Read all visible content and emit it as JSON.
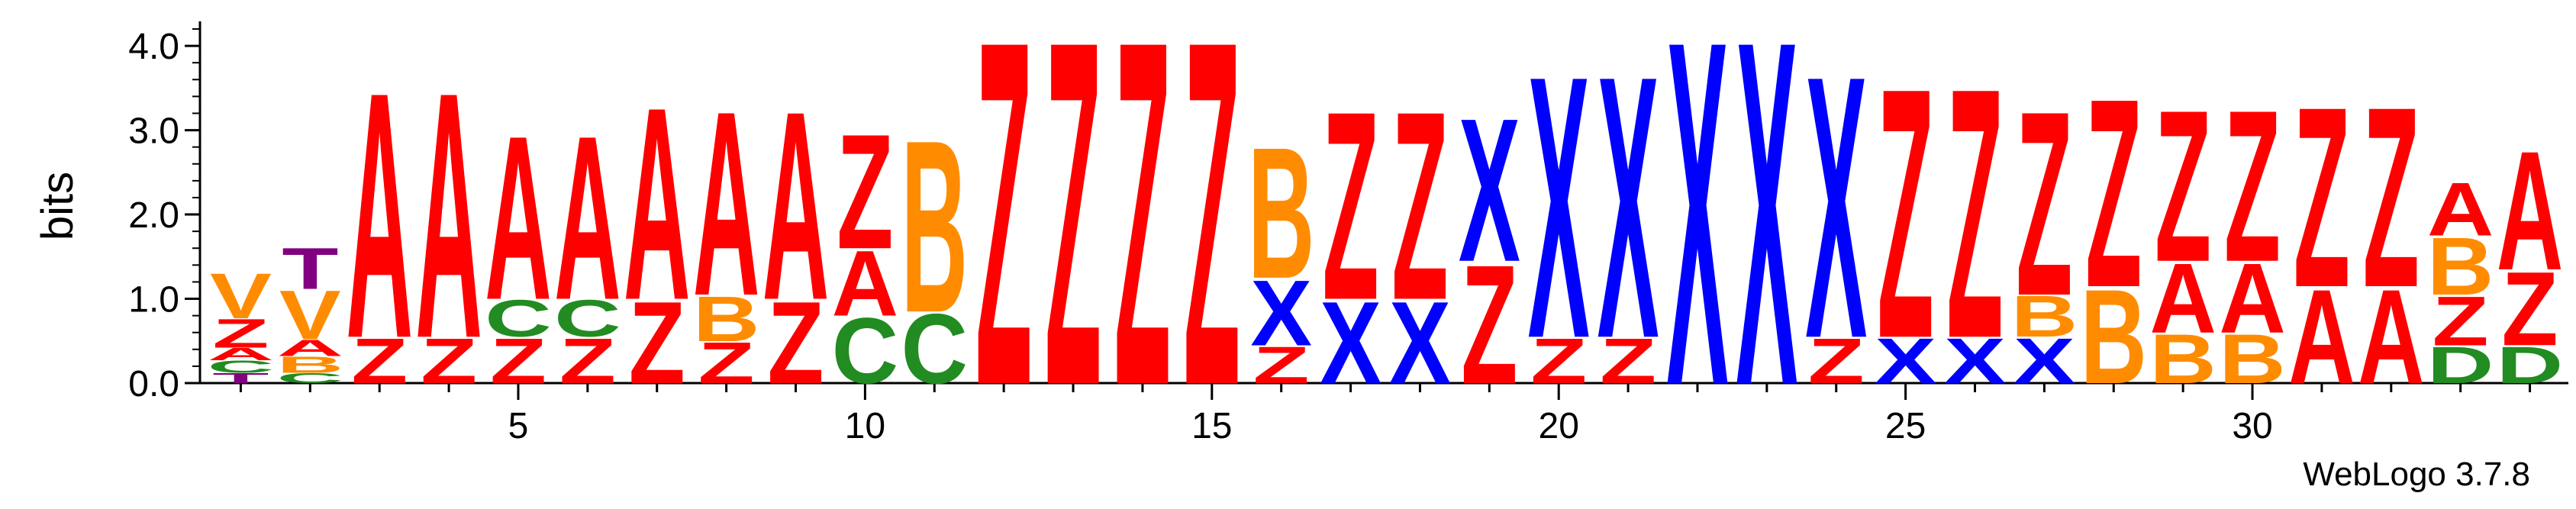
{
  "chart_data": {
    "type": "sequence-logo",
    "title": "",
    "xlabel": "",
    "ylabel": "bits",
    "ylim": [
      0,
      4.2
    ],
    "yticks": [
      "0.0",
      "1.0",
      "2.0",
      "3.0",
      "4.0"
    ],
    "xticks": [
      "5",
      "10",
      "15",
      "20",
      "25",
      "30"
    ],
    "colors": {
      "A": "#ff0000",
      "Z": "#ff0000",
      "B": "#ff8c00",
      "V": "#ff8c00",
      "C": "#228b22",
      "D": "#228b22",
      "X": "#0000ff",
      "T": "#800080"
    },
    "positions": [
      {
        "pos": 1,
        "stack": [
          [
            "T",
            0.12
          ],
          [
            "C",
            0.15
          ],
          [
            "A",
            0.15
          ],
          [
            "Z",
            0.35
          ],
          [
            "V",
            0.55
          ]
        ]
      },
      {
        "pos": 2,
        "stack": [
          [
            "C",
            0.12
          ],
          [
            "B",
            0.2
          ],
          [
            "A",
            0.2
          ],
          [
            "V",
            0.6
          ],
          [
            "T",
            0.5
          ]
        ]
      },
      {
        "pos": 3,
        "stack": [
          [
            "Z",
            0.55
          ],
          [
            "A",
            3.0
          ]
        ]
      },
      {
        "pos": 4,
        "stack": [
          [
            "Z",
            0.55
          ],
          [
            "A",
            3.0
          ]
        ]
      },
      {
        "pos": 5,
        "stack": [
          [
            "Z",
            0.55
          ],
          [
            "C",
            0.45
          ],
          [
            "A",
            2.0
          ]
        ]
      },
      {
        "pos": 6,
        "stack": [
          [
            "Z",
            0.55
          ],
          [
            "C",
            0.45
          ],
          [
            "A",
            2.0
          ]
        ]
      },
      {
        "pos": 7,
        "stack": [
          [
            "Z",
            1.0
          ],
          [
            "A",
            2.35
          ]
        ]
      },
      {
        "pos": 8,
        "stack": [
          [
            "Z",
            0.5
          ],
          [
            "B",
            0.55
          ],
          [
            "A",
            2.25
          ]
        ]
      },
      {
        "pos": 9,
        "stack": [
          [
            "Z",
            1.0
          ],
          [
            "A",
            2.3
          ]
        ]
      },
      {
        "pos": 10,
        "stack": [
          [
            "C",
            0.8
          ],
          [
            "A",
            0.8
          ],
          [
            "Z",
            1.4
          ]
        ]
      },
      {
        "pos": 11,
        "stack": [
          [
            "C",
            0.85
          ],
          [
            "B",
            2.1
          ]
        ]
      },
      {
        "pos": 12,
        "stack": [
          [
            "Z",
            4.2
          ]
        ]
      },
      {
        "pos": 13,
        "stack": [
          [
            "Z",
            4.2
          ]
        ]
      },
      {
        "pos": 14,
        "stack": [
          [
            "Z",
            4.2
          ]
        ]
      },
      {
        "pos": 15,
        "stack": [
          [
            "Z",
            4.2
          ]
        ]
      },
      {
        "pos": 16,
        "stack": [
          [
            "Z",
            0.45
          ],
          [
            "X",
            0.8
          ],
          [
            "B",
            1.6
          ]
        ]
      },
      {
        "pos": 17,
        "stack": [
          [
            "X",
            1.0
          ],
          [
            "Z",
            2.3
          ]
        ]
      },
      {
        "pos": 18,
        "stack": [
          [
            "X",
            1.0
          ],
          [
            "Z",
            2.3
          ]
        ]
      },
      {
        "pos": 19,
        "stack": [
          [
            "Z",
            1.45
          ],
          [
            "X",
            1.75
          ]
        ]
      },
      {
        "pos": 20,
        "stack": [
          [
            "Z",
            0.55
          ],
          [
            "X",
            3.2
          ]
        ]
      },
      {
        "pos": 21,
        "stack": [
          [
            "Z",
            0.55
          ],
          [
            "X",
            3.2
          ]
        ]
      },
      {
        "pos": 22,
        "stack": [
          [
            "X",
            4.2
          ]
        ]
      },
      {
        "pos": 23,
        "stack": [
          [
            "X",
            4.2
          ]
        ]
      },
      {
        "pos": 24,
        "stack": [
          [
            "Z",
            0.55
          ],
          [
            "X",
            3.2
          ]
        ]
      },
      {
        "pos": 25,
        "stack": [
          [
            "X",
            0.55
          ],
          [
            "Z",
            3.05
          ]
        ]
      },
      {
        "pos": 26,
        "stack": [
          [
            "X",
            0.55
          ],
          [
            "Z",
            3.05
          ]
        ]
      },
      {
        "pos": 27,
        "stack": [
          [
            "X",
            0.55
          ],
          [
            "B",
            0.5
          ],
          [
            "Z",
            2.25
          ]
        ]
      },
      {
        "pos": 28,
        "stack": [
          [
            "B",
            1.15
          ],
          [
            "Z",
            2.3
          ]
        ]
      },
      {
        "pos": 29,
        "stack": [
          [
            "B",
            0.6
          ],
          [
            "A",
            0.85
          ],
          [
            "Z",
            1.85
          ]
        ]
      },
      {
        "pos": 30,
        "stack": [
          [
            "B",
            0.6
          ],
          [
            "A",
            0.85
          ],
          [
            "Z",
            1.85
          ]
        ]
      },
      {
        "pos": 31,
        "stack": [
          [
            "A",
            1.15
          ],
          [
            "Z",
            2.2
          ]
        ]
      },
      {
        "pos": 32,
        "stack": [
          [
            "A",
            1.15
          ],
          [
            "Z",
            2.2
          ]
        ]
      },
      {
        "pos": 33,
        "stack": [
          [
            "D",
            0.45
          ],
          [
            "Z",
            0.6
          ],
          [
            "B",
            0.7
          ],
          [
            "A",
            0.65
          ]
        ]
      },
      {
        "pos": 34,
        "stack": [
          [
            "D",
            0.45
          ],
          [
            "Z",
            0.9
          ],
          [
            "A",
            1.45
          ]
        ]
      }
    ]
  },
  "footer": {
    "credit": "WebLogo 3.7.8"
  }
}
